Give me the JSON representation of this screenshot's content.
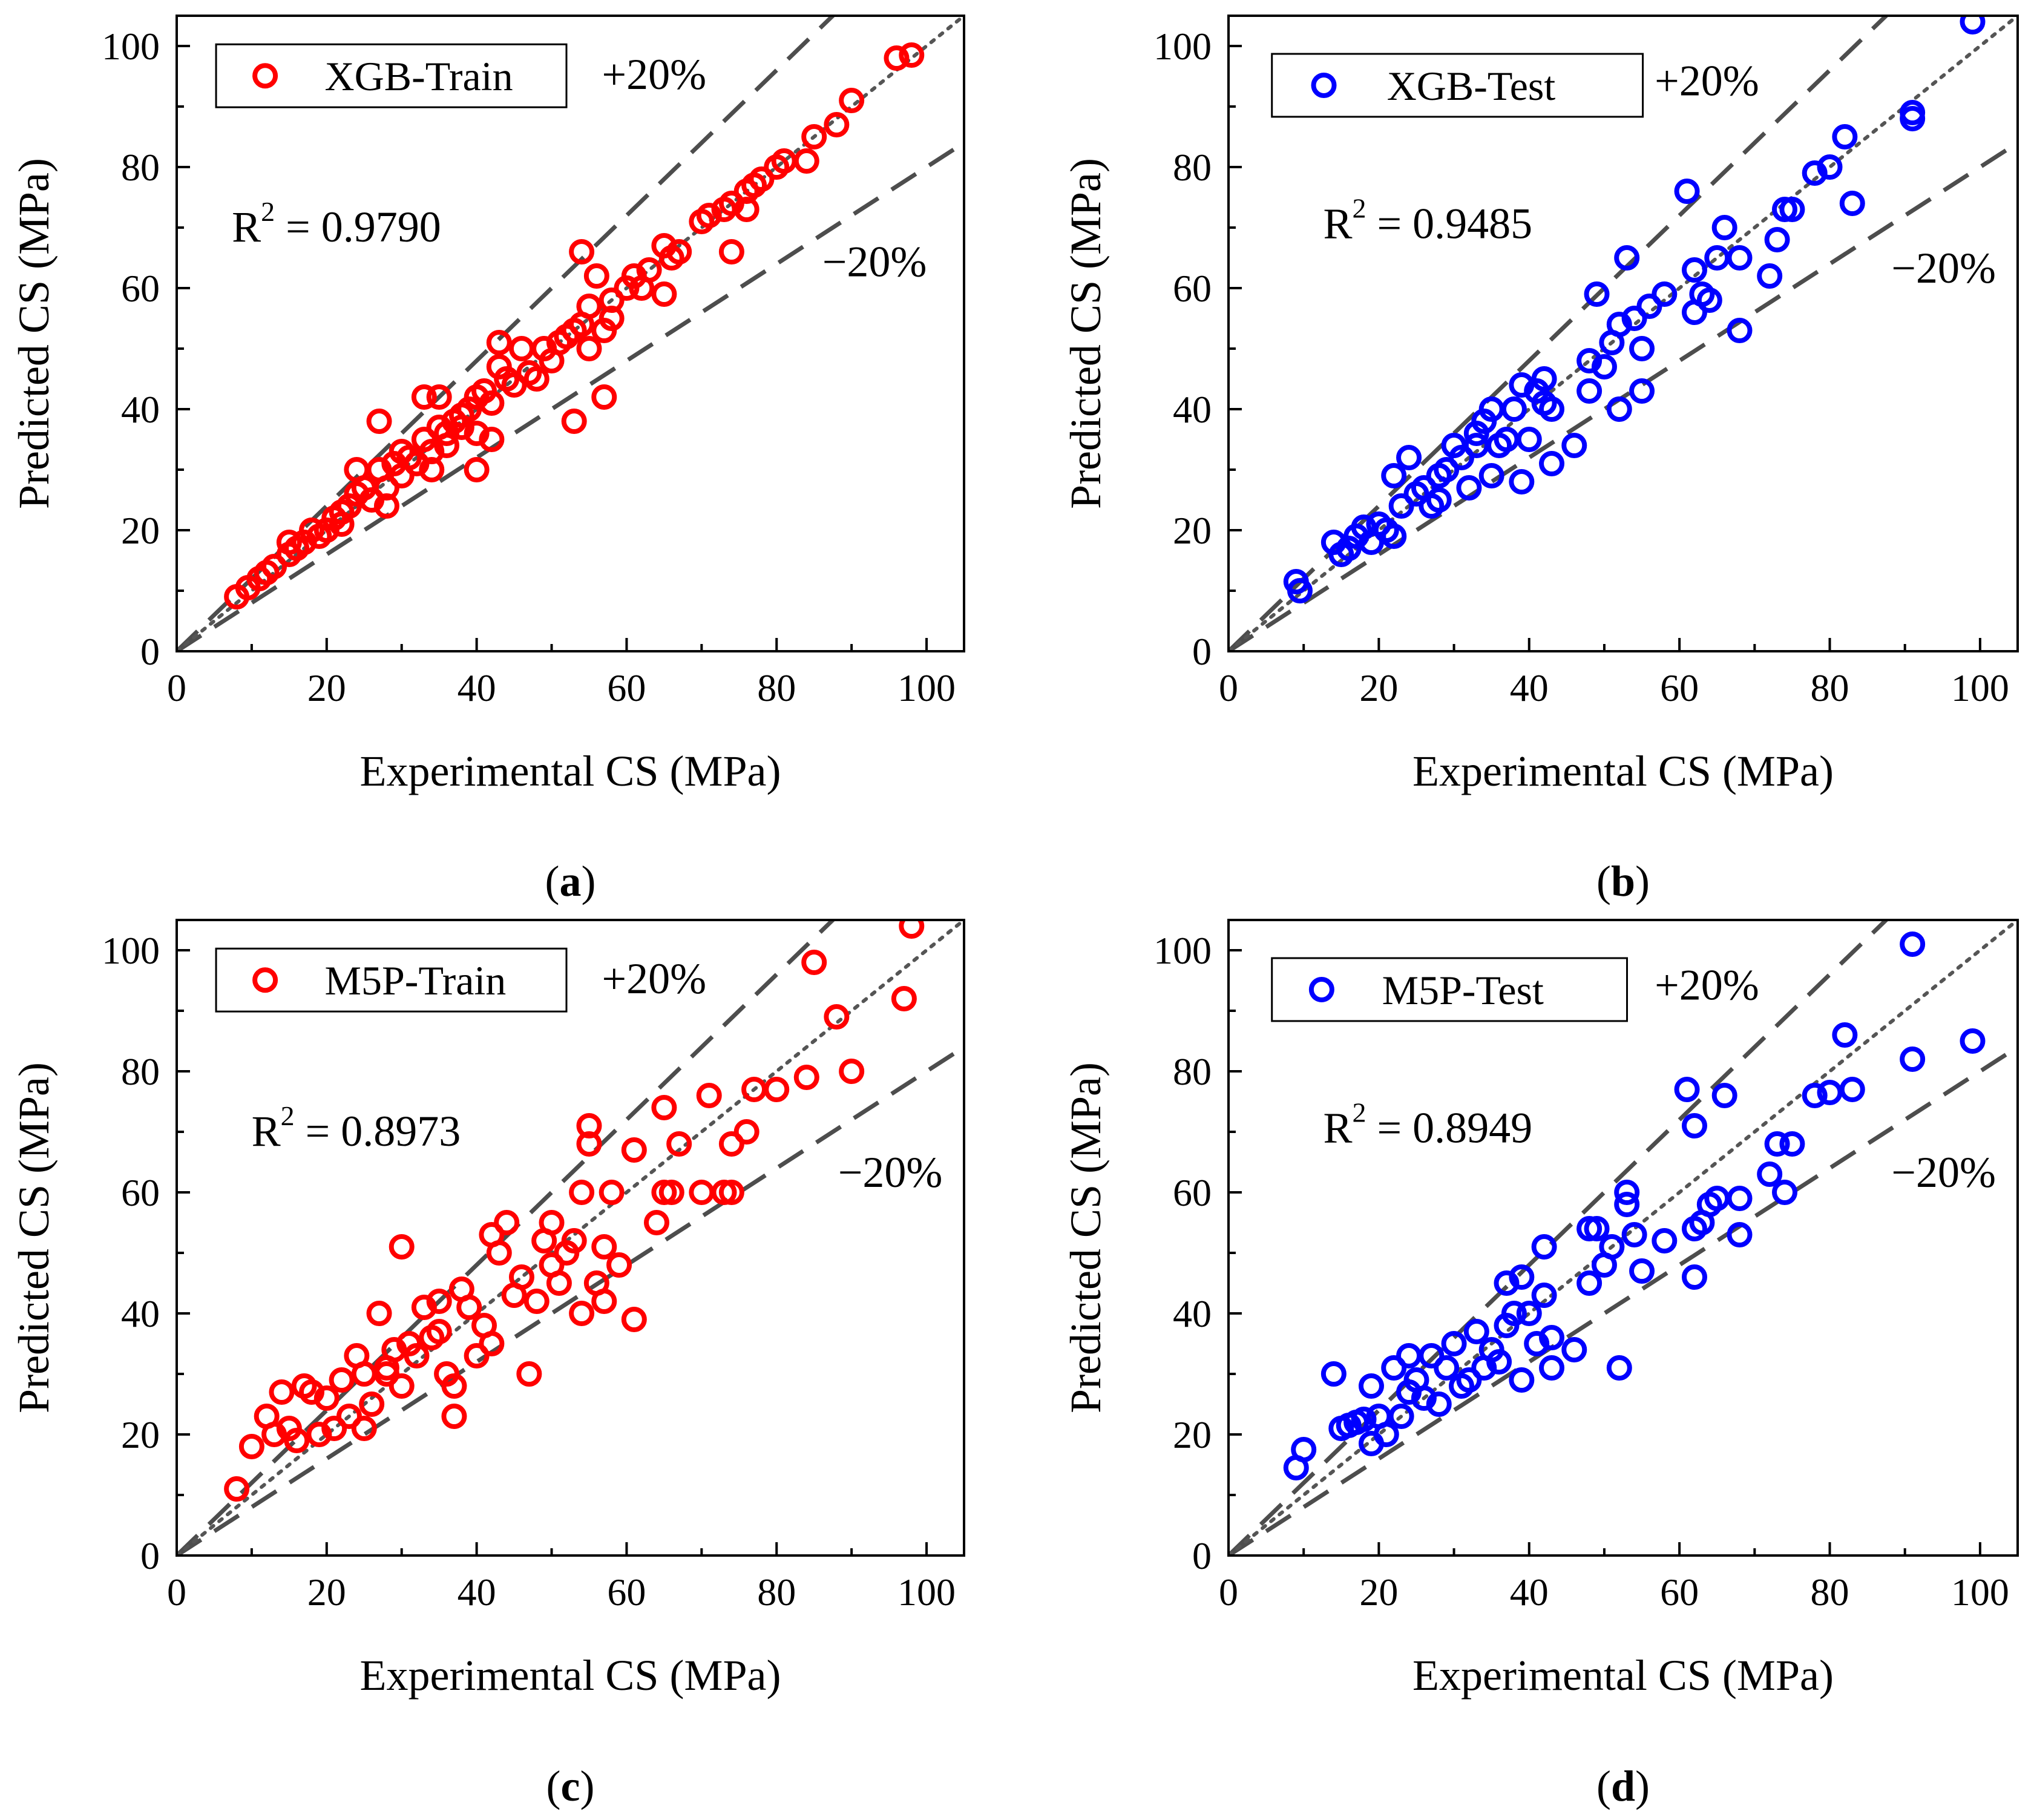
{
  "colors": {
    "train": "#ff0000",
    "test": "#0000ff",
    "reference": "#555555",
    "bands": "#4d4d4d"
  },
  "chart_data": [
    {
      "type": "scatter",
      "caption_letter": "a",
      "legend_label": "XGB-Train",
      "marker_color": "#ff0000",
      "r2_label": "R",
      "r2_sup": "2",
      "r2_value": " = 0.9790",
      "upper_band_label": "+20%",
      "lower_band_label": "−20%",
      "xlabel": "Experimental CS (MPa)",
      "ylabel": "Predicted CS (MPa)",
      "xlim": [
        0,
        105
      ],
      "ylim": [
        0,
        105
      ],
      "xticks": [
        "0",
        "20",
        "40",
        "60",
        "80",
        "100"
      ],
      "yticks": [
        "0",
        "20",
        "40",
        "60",
        "80",
        "100"
      ],
      "points": [
        [
          8,
          9
        ],
        [
          9.5,
          10.5
        ],
        [
          11,
          12
        ],
        [
          12,
          13
        ],
        [
          13,
          14
        ],
        [
          15,
          16
        ],
        [
          15,
          18
        ],
        [
          16,
          17
        ],
        [
          17,
          18
        ],
        [
          18,
          20
        ],
        [
          19,
          19
        ],
        [
          20,
          20
        ],
        [
          21,
          22
        ],
        [
          22,
          23
        ],
        [
          22,
          21
        ],
        [
          23,
          24
        ],
        [
          24,
          30
        ],
        [
          24,
          26
        ],
        [
          25,
          27
        ],
        [
          26,
          25
        ],
        [
          27,
          38
        ],
        [
          27,
          30
        ],
        [
          28,
          27
        ],
        [
          28,
          24
        ],
        [
          29,
          31
        ],
        [
          30,
          29
        ],
        [
          30,
          33
        ],
        [
          31,
          32
        ],
        [
          32,
          31
        ],
        [
          33,
          42
        ],
        [
          33,
          35
        ],
        [
          34,
          33
        ],
        [
          34,
          30
        ],
        [
          35,
          42
        ],
        [
          35,
          37
        ],
        [
          36,
          36
        ],
        [
          36,
          34
        ],
        [
          37,
          38
        ],
        [
          38,
          39
        ],
        [
          38,
          37
        ],
        [
          39,
          40
        ],
        [
          40,
          30
        ],
        [
          40,
          42
        ],
        [
          40,
          36
        ],
        [
          41,
          43
        ],
        [
          42,
          41
        ],
        [
          42,
          35
        ],
        [
          43,
          51
        ],
        [
          43,
          47
        ],
        [
          44,
          45
        ],
        [
          45,
          44
        ],
        [
          46,
          50
        ],
        [
          47,
          46
        ],
        [
          48,
          45
        ],
        [
          49,
          50
        ],
        [
          50,
          48
        ],
        [
          51,
          51
        ],
        [
          52,
          52
        ],
        [
          53,
          53
        ],
        [
          53,
          38
        ],
        [
          54,
          54
        ],
        [
          54,
          66
        ],
        [
          55,
          50
        ],
        [
          55,
          57
        ],
        [
          56,
          62
        ],
        [
          57,
          42
        ],
        [
          57,
          53
        ],
        [
          58,
          55
        ],
        [
          58,
          58
        ],
        [
          60,
          60
        ],
        [
          61,
          62
        ],
        [
          62,
          60
        ],
        [
          63,
          63
        ],
        [
          65,
          59
        ],
        [
          65,
          67
        ],
        [
          66,
          65
        ],
        [
          67,
          66
        ],
        [
          70,
          71
        ],
        [
          71,
          72
        ],
        [
          73,
          73
        ],
        [
          74,
          66
        ],
        [
          74,
          74
        ],
        [
          76,
          73
        ],
        [
          76,
          76
        ],
        [
          77,
          77
        ],
        [
          78,
          78
        ],
        [
          80,
          80
        ],
        [
          81,
          81
        ],
        [
          84,
          81
        ],
        [
          85,
          85
        ],
        [
          88,
          87
        ],
        [
          90,
          91
        ],
        [
          96,
          98
        ],
        [
          98,
          98.5
        ]
      ]
    },
    {
      "type": "scatter",
      "caption_letter": "b",
      "legend_label": "XGB-Test",
      "marker_color": "#0000ff",
      "r2_label": "R",
      "r2_sup": "2",
      "r2_value": " = 0.9485",
      "upper_band_label": "+20%",
      "lower_band_label": "−20%",
      "xlabel": "Experimental CS (MPa)",
      "ylabel": "Predicted CS (MPa)",
      "xlim": [
        0,
        105
      ],
      "ylim": [
        0,
        105
      ],
      "xticks": [
        "0",
        "20",
        "40",
        "60",
        "80",
        "100"
      ],
      "yticks": [
        "0",
        "20",
        "40",
        "60",
        "80",
        "100"
      ],
      "points": [
        [
          9,
          11.5
        ],
        [
          9.5,
          10
        ],
        [
          14,
          18
        ],
        [
          15,
          16
        ],
        [
          16,
          17
        ],
        [
          17,
          19
        ],
        [
          18,
          20.5
        ],
        [
          19,
          18
        ],
        [
          20,
          21
        ],
        [
          21,
          20
        ],
        [
          22,
          19
        ],
        [
          22,
          29
        ],
        [
          23,
          24
        ],
        [
          24,
          32
        ],
        [
          25,
          26
        ],
        [
          26,
          27
        ],
        [
          27,
          24
        ],
        [
          28,
          25
        ],
        [
          28,
          29
        ],
        [
          29,
          30
        ],
        [
          30,
          34
        ],
        [
          31,
          32
        ],
        [
          32,
          27
        ],
        [
          33,
          34
        ],
        [
          33,
          36
        ],
        [
          34,
          38
        ],
        [
          35,
          40
        ],
        [
          35,
          29
        ],
        [
          36,
          34
        ],
        [
          37,
          35
        ],
        [
          38,
          40
        ],
        [
          39,
          44
        ],
        [
          39,
          28
        ],
        [
          40,
          35
        ],
        [
          41,
          43
        ],
        [
          42,
          45
        ],
        [
          42,
          41
        ],
        [
          43,
          40
        ],
        [
          43,
          31
        ],
        [
          46,
          34
        ],
        [
          48,
          48
        ],
        [
          48,
          43
        ],
        [
          49,
          59
        ],
        [
          50,
          47
        ],
        [
          51,
          51
        ],
        [
          52,
          40
        ],
        [
          52,
          54
        ],
        [
          53,
          65
        ],
        [
          54,
          55
        ],
        [
          55,
          50
        ],
        [
          55,
          43
        ],
        [
          56,
          57
        ],
        [
          58,
          59
        ],
        [
          61,
          76
        ],
        [
          62,
          56
        ],
        [
          62,
          63
        ],
        [
          63,
          59
        ],
        [
          64,
          58
        ],
        [
          65,
          65
        ],
        [
          66,
          70
        ],
        [
          68,
          53
        ],
        [
          68,
          65
        ],
        [
          72,
          62
        ],
        [
          73,
          68
        ],
        [
          74,
          73
        ],
        [
          75,
          73
        ],
        [
          78,
          79
        ],
        [
          80,
          80
        ],
        [
          82,
          85
        ],
        [
          83,
          74
        ],
        [
          91,
          88
        ],
        [
          91,
          89
        ],
        [
          99,
          104
        ]
      ]
    },
    {
      "type": "scatter",
      "caption_letter": "c",
      "legend_label": "M5P-Train",
      "marker_color": "#ff0000",
      "r2_label": "R",
      "r2_sup": "2",
      "r2_value": " = 0.8973",
      "upper_band_label": "+20%",
      "lower_band_label": "−20%",
      "xlabel": "Experimental CS (MPa)",
      "ylabel": "Predicted CS (MPa)",
      "xlim": [
        0,
        105
      ],
      "ylim": [
        0,
        105
      ],
      "xticks": [
        "0",
        "20",
        "40",
        "60",
        "80",
        "100"
      ],
      "yticks": [
        "0",
        "20",
        "40",
        "60",
        "80",
        "100"
      ],
      "points": [
        [
          8,
          11
        ],
        [
          10,
          18
        ],
        [
          12,
          23
        ],
        [
          13,
          20
        ],
        [
          14,
          27
        ],
        [
          15,
          21
        ],
        [
          16,
          19
        ],
        [
          17,
          28
        ],
        [
          18,
          27
        ],
        [
          19,
          20
        ],
        [
          20,
          26
        ],
        [
          21,
          21
        ],
        [
          22,
          29
        ],
        [
          23,
          23
        ],
        [
          24,
          33
        ],
        [
          25,
          30
        ],
        [
          25,
          21
        ],
        [
          26,
          25
        ],
        [
          27,
          40
        ],
        [
          28,
          31
        ],
        [
          28,
          30
        ],
        [
          29,
          34
        ],
        [
          30,
          28
        ],
        [
          30,
          51
        ],
        [
          31,
          35
        ],
        [
          32,
          33
        ],
        [
          33,
          41
        ],
        [
          34,
          36
        ],
        [
          35,
          37
        ],
        [
          35,
          42
        ],
        [
          36,
          30
        ],
        [
          37,
          23
        ],
        [
          37,
          28
        ],
        [
          38,
          44
        ],
        [
          39,
          41
        ],
        [
          40,
          33
        ],
        [
          41,
          38
        ],
        [
          42,
          35
        ],
        [
          42,
          53
        ],
        [
          43,
          50
        ],
        [
          44,
          55
        ],
        [
          45,
          43
        ],
        [
          46,
          46
        ],
        [
          47,
          30
        ],
        [
          48,
          42
        ],
        [
          49,
          52
        ],
        [
          50,
          55
        ],
        [
          50,
          48
        ],
        [
          51,
          45
        ],
        [
          52,
          50
        ],
        [
          53,
          52
        ],
        [
          54,
          40
        ],
        [
          54,
          60
        ],
        [
          55,
          68
        ],
        [
          55,
          71
        ],
        [
          56,
          45
        ],
        [
          57,
          42
        ],
        [
          57,
          51
        ],
        [
          58,
          60
        ],
        [
          59,
          48
        ],
        [
          61,
          39
        ],
        [
          61,
          67
        ],
        [
          64,
          55
        ],
        [
          65,
          60
        ],
        [
          65,
          74
        ],
        [
          66,
          60
        ],
        [
          67,
          68
        ],
        [
          70,
          60
        ],
        [
          71,
          76
        ],
        [
          73,
          60
        ],
        [
          74,
          60
        ],
        [
          74,
          68
        ],
        [
          76,
          70
        ],
        [
          77,
          77
        ],
        [
          80,
          77
        ],
        [
          84,
          79
        ],
        [
          85,
          98
        ],
        [
          88,
          89
        ],
        [
          90,
          80
        ],
        [
          97,
          92
        ],
        [
          98,
          104
        ]
      ]
    },
    {
      "type": "scatter",
      "caption_letter": "d",
      "legend_label": "M5P-Test",
      "marker_color": "#0000ff",
      "r2_label": "R",
      "r2_sup": "2",
      "r2_value": " = 0.8949",
      "upper_band_label": "+20%",
      "lower_band_label": "−20%",
      "xlabel": "Experimental CS (MPa)",
      "ylabel": "Predicted CS (MPa)",
      "xlim": [
        0,
        105
      ],
      "ylim": [
        0,
        105
      ],
      "xticks": [
        "0",
        "20",
        "40",
        "60",
        "80",
        "100"
      ],
      "yticks": [
        "0",
        "20",
        "40",
        "60",
        "80",
        "100"
      ],
      "points": [
        [
          9,
          14.5
        ],
        [
          10,
          17.5
        ],
        [
          14,
          30
        ],
        [
          15,
          21
        ],
        [
          16,
          21.5
        ],
        [
          17,
          22
        ],
        [
          18,
          22.5
        ],
        [
          19,
          18.5
        ],
        [
          19,
          28
        ],
        [
          20,
          23
        ],
        [
          21,
          20
        ],
        [
          22,
          31
        ],
        [
          23,
          23
        ],
        [
          24,
          33
        ],
        [
          24,
          27
        ],
        [
          25,
          29
        ],
        [
          26,
          26
        ],
        [
          27,
          33
        ],
        [
          28,
          25
        ],
        [
          29,
          31
        ],
        [
          30,
          35
        ],
        [
          31,
          28
        ],
        [
          32,
          29
        ],
        [
          33,
          37
        ],
        [
          34,
          31
        ],
        [
          35,
          34
        ],
        [
          36,
          32
        ],
        [
          37,
          45
        ],
        [
          37,
          38
        ],
        [
          38,
          40
        ],
        [
          39,
          46
        ],
        [
          39,
          29
        ],
        [
          40,
          40
        ],
        [
          41,
          35
        ],
        [
          42,
          43
        ],
        [
          42,
          51
        ],
        [
          43,
          31
        ],
        [
          43,
          36
        ],
        [
          46,
          34
        ],
        [
          48,
          45
        ],
        [
          48,
          54
        ],
        [
          49,
          54
        ],
        [
          50,
          48
        ],
        [
          51,
          51
        ],
        [
          52,
          31
        ],
        [
          53,
          60
        ],
        [
          53,
          58
        ],
        [
          54,
          53
        ],
        [
          55,
          47
        ],
        [
          58,
          52
        ],
        [
          61,
          77
        ],
        [
          62,
          71
        ],
        [
          62,
          46
        ],
        [
          62,
          54
        ],
        [
          63,
          55
        ],
        [
          64,
          58
        ],
        [
          65,
          59
        ],
        [
          66,
          76
        ],
        [
          68,
          53
        ],
        [
          68,
          59
        ],
        [
          72,
          63
        ],
        [
          73,
          68
        ],
        [
          74,
          60
        ],
        [
          75,
          68
        ],
        [
          78,
          76
        ],
        [
          80,
          76.5
        ],
        [
          82,
          86
        ],
        [
          83,
          77
        ],
        [
          91,
          101
        ],
        [
          91,
          82
        ],
        [
          99,
          85
        ]
      ]
    }
  ]
}
